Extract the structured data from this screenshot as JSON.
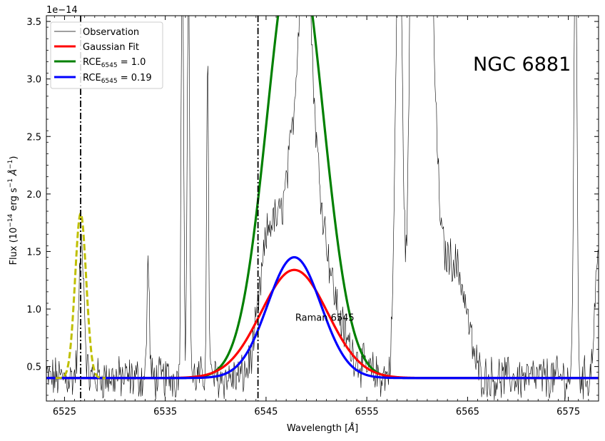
{
  "chart_data": {
    "type": "line",
    "offset_text": "1e−14",
    "xlabel_prefix": "Wavelength [",
    "xlabel_unit": "Å",
    "xlabel_suffix": "]",
    "ylabel_prefix": "Flux (10",
    "ylabel_exp1": "−14",
    "ylabel_mid": " erg s",
    "ylabel_exp2": "−1",
    "ylabel_unit": " Å",
    "ylabel_exp3": "−1",
    "ylabel_suffix": ")",
    "xlim": [
      6523.2,
      6578.0
    ],
    "ylim": [
      0.2,
      3.55
    ],
    "xticks": [
      6525,
      6535,
      6545,
      6555,
      6565,
      6575
    ],
    "yticks": [
      0.5,
      1.0,
      1.5,
      2.0,
      2.5,
      3.0,
      3.5
    ],
    "ytick_labels": [
      "0.5",
      "1.0",
      "1.5",
      "2.0",
      "2.5",
      "3.0",
      "3.5"
    ],
    "continuum": 0.4,
    "vlines": [
      6526.6,
      6544.2
    ],
    "annotation": {
      "text": "Raman 6545",
      "x": 6547.9,
      "y": 0.93
    },
    "object_label": "NGC 6881",
    "legend_position": "upper-left",
    "series": [
      {
        "name": "Observation",
        "style": "thin-line",
        "color": "#000000"
      },
      {
        "name": "Gaussian Fit",
        "style": "gaussian",
        "color": "#ff0000",
        "center": 6547.8,
        "sigma": 3.3,
        "peak": 0.94
      },
      {
        "name_main": "RCE",
        "name_sub": "6545",
        "name_tail": " = 1.0",
        "style": "gaussian",
        "color": "#008000",
        "center": 6547.9,
        "sigma": 2.75,
        "peak": 3.82
      },
      {
        "name_main": "RCE",
        "name_sub": "6545",
        "name_tail": " = 0.19",
        "style": "gaussian",
        "color": "#0000ff",
        "center": 6547.8,
        "sigma": 2.65,
        "peak": 1.05
      },
      {
        "style": "dashed-gaussian",
        "color": "#bfbf00",
        "center": 6526.6,
        "sigma": 0.55,
        "peak": 1.43
      }
    ],
    "observation_features": [
      {
        "center": 6526.7,
        "sigma": 0.25,
        "amp": 1.2
      },
      {
        "center": 6533.3,
        "sigma": 0.12,
        "amp": 1.0
      },
      {
        "center": 6536.7,
        "sigma": 0.12,
        "amp": 4.0
      },
      {
        "center": 6537.3,
        "sigma": 0.12,
        "amp": 3.5
      },
      {
        "center": 6539.2,
        "sigma": 0.1,
        "amp": 2.7
      },
      {
        "center": 6545.2,
        "sigma": 0.9,
        "amp": 1.0
      },
      {
        "center": 6548.5,
        "sigma": 1.6,
        "amp": 2.2
      },
      {
        "center": 6548.9,
        "sigma": 0.5,
        "amp": 1.5
      },
      {
        "center": 6550.6,
        "sigma": 2.2,
        "amp": 0.55
      },
      {
        "center": 6558.2,
        "sigma": 0.35,
        "amp": 4.0
      },
      {
        "center": 6559.5,
        "sigma": 0.3,
        "amp": 4.0
      },
      {
        "center": 6560.1,
        "sigma": 0.3,
        "amp": 1.5
      },
      {
        "center": 6561.0,
        "sigma": 0.7,
        "amp": 4.0
      },
      {
        "center": 6563.0,
        "sigma": 1.0,
        "amp": 0.9
      },
      {
        "center": 6564.5,
        "sigma": 0.8,
        "amp": 0.5
      },
      {
        "center": 6575.7,
        "sigma": 0.15,
        "amp": 4.0
      },
      {
        "center": 6577.9,
        "sigma": 0.3,
        "amp": 1.0
      }
    ]
  }
}
